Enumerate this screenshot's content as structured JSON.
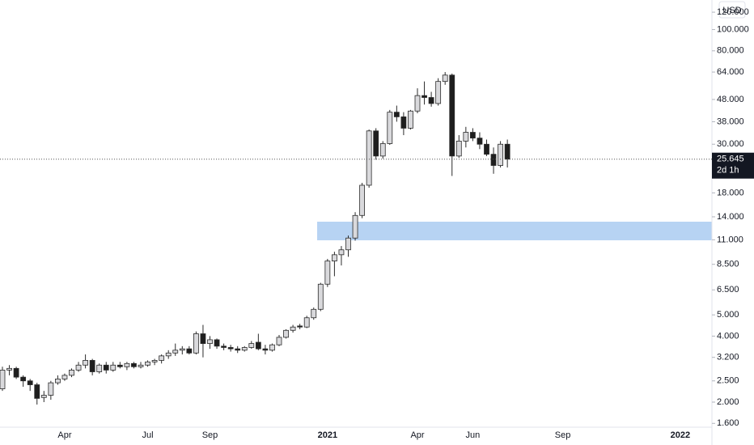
{
  "chart_data": {
    "type": "candlestick",
    "currency": "USD",
    "countdown": "2d 1h",
    "log_scale": true,
    "ylim": [
      1537,
      136400
    ],
    "yticks": [
      {
        "value": 1600,
        "label": "1.600"
      },
      {
        "value": 2000,
        "label": "2.000"
      },
      {
        "value": 2500,
        "label": "2.500"
      },
      {
        "value": 3200,
        "label": "3.200"
      },
      {
        "value": 4000,
        "label": "4.000"
      },
      {
        "value": 5000,
        "label": "5.000"
      },
      {
        "value": 6500,
        "label": "6.500"
      },
      {
        "value": 8500,
        "label": "8.500"
      },
      {
        "value": 11000,
        "label": "11.000"
      },
      {
        "value": 14000,
        "label": "14.000"
      },
      {
        "value": 18000,
        "label": "18.000"
      },
      {
        "value": 30000,
        "label": "30.000"
      },
      {
        "value": 38000,
        "label": "38.000"
      },
      {
        "value": 48000,
        "label": "48.000"
      },
      {
        "value": 64000,
        "label": "64.000"
      },
      {
        "value": 80000,
        "label": "80.000"
      },
      {
        "value": 100000,
        "label": "100.000"
      },
      {
        "value": 120000,
        "label": "120.000"
      }
    ],
    "last_price": {
      "value": 25645,
      "label": "25.645"
    },
    "zone": {
      "from": 10940,
      "to": 13300,
      "color": "#b3d1f2"
    },
    "up_color": "#d9d9dc",
    "down_color": "#1e1e1e",
    "border_color": "#2b2b2b",
    "categories": [
      null,
      null,
      null,
      null,
      null,
      null,
      null,
      null,
      null,
      "Apr",
      null,
      null,
      null,
      null,
      null,
      null,
      null,
      null,
      null,
      null,
      null,
      "Jul",
      null,
      null,
      null,
      null,
      null,
      null,
      null,
      null,
      "Sep",
      null,
      null,
      null,
      null,
      null,
      null,
      null,
      null,
      null,
      null,
      null,
      null,
      null,
      null,
      null,
      null,
      "2021",
      null,
      null,
      null,
      null,
      null,
      null,
      null,
      null,
      null,
      null,
      null,
      null,
      "Apr",
      null,
      null,
      null,
      null,
      null,
      null,
      null,
      "Jun",
      null,
      null,
      null,
      null,
      null,
      null,
      null,
      null,
      null,
      null,
      null,
      null,
      "Sep",
      null,
      null,
      null,
      null,
      null,
      null,
      null,
      null,
      null,
      null,
      null,
      null,
      null,
      null,
      null,
      null,
      "2022",
      null,
      null,
      null,
      null
    ],
    "open": [
      2300,
      2800,
      2850,
      2600,
      2500,
      2400,
      2100,
      2150,
      2450,
      2550,
      2650,
      2800,
      2950,
      3100,
      2750,
      2950,
      2800,
      2950,
      2900,
      3000,
      2900,
      2950,
      3050,
      3100,
      3250,
      3350,
      3450,
      3500,
      3350,
      4100,
      3700,
      3850,
      3600,
      3550,
      3500,
      3450,
      3550,
      3750,
      3500,
      3450,
      3650,
      3950,
      4250,
      4450,
      4400,
      4850,
      5300,
      6900,
      8800,
      9400,
      9900,
      11200,
      14200,
      19500,
      34500,
      26500,
      30200,
      42000,
      40000,
      35500,
      42500,
      50000,
      49000,
      46000,
      58000,
      62000,
      26500,
      31000,
      34000,
      32000,
      30000,
      27000,
      24000,
      30000,
      null,
      null,
      null,
      null,
      null,
      null,
      null,
      null,
      null,
      null,
      null,
      null,
      null,
      null,
      null,
      null,
      null,
      null,
      null,
      null,
      null,
      null,
      null,
      null,
      null,
      null,
      null,
      null,
      null
    ],
    "high": [
      2900,
      2950,
      2900,
      2650,
      2550,
      2450,
      2250,
      2500,
      2650,
      2700,
      2850,
      3050,
      3300,
      3150,
      3000,
      3050,
      3050,
      3050,
      3050,
      3050,
      3050,
      3100,
      3150,
      3300,
      3450,
      3700,
      3600,
      3600,
      4200,
      4500,
      4000,
      3900,
      3700,
      3650,
      3600,
      3600,
      3800,
      4100,
      3650,
      3700,
      4050,
      4300,
      4500,
      4550,
      4950,
      5400,
      7000,
      9000,
      9700,
      10300,
      11500,
      14700,
      20000,
      35000,
      35500,
      31000,
      43000,
      45000,
      42000,
      43000,
      54000,
      58000,
      52000,
      60000,
      64000,
      63000,
      33000,
      36000,
      35500,
      34000,
      31500,
      29000,
      31000,
      31500,
      null,
      null,
      null,
      null,
      null,
      null,
      null,
      null,
      null,
      null,
      null,
      null,
      null,
      null,
      null,
      null,
      null,
      null,
      null,
      null,
      null,
      null,
      null,
      null,
      null,
      null,
      null,
      null,
      null
    ],
    "low": [
      2250,
      2650,
      2550,
      2350,
      2250,
      1950,
      2000,
      2050,
      2400,
      2500,
      2600,
      2750,
      2850,
      2650,
      2700,
      2700,
      2750,
      2850,
      2800,
      2850,
      2850,
      2900,
      2950,
      3000,
      3150,
      3250,
      3300,
      3300,
      3300,
      3200,
      3500,
      3500,
      3450,
      3400,
      3350,
      3400,
      3500,
      3450,
      3300,
      3400,
      3600,
      3900,
      4150,
      4300,
      4350,
      4750,
      5200,
      6700,
      7500,
      8400,
      9200,
      10900,
      13800,
      19000,
      25500,
      25800,
      29800,
      38000,
      33000,
      35000,
      41500,
      45500,
      44500,
      45000,
      56000,
      21500,
      26000,
      29000,
      31000,
      28500,
      26500,
      22000,
      23500,
      23500,
      null,
      null,
      null,
      null,
      null,
      null,
      null,
      null,
      null,
      null,
      null,
      null,
      null,
      null,
      null,
      null,
      null,
      null,
      null,
      null,
      null,
      null,
      null,
      null,
      null,
      null,
      null,
      null,
      null
    ],
    "close": [
      2800,
      2850,
      2600,
      2500,
      2400,
      2080,
      2150,
      2450,
      2550,
      2650,
      2800,
      2950,
      3100,
      2750,
      2950,
      2800,
      2950,
      2900,
      3000,
      2900,
      2950,
      3050,
      3100,
      3250,
      3350,
      3450,
      3500,
      3350,
      4100,
      3700,
      3850,
      3600,
      3550,
      3500,
      3450,
      3550,
      3700,
      3500,
      3450,
      3650,
      3950,
      4250,
      4400,
      4400,
      4850,
      5300,
      6900,
      8800,
      9400,
      9900,
      11200,
      14200,
      19500,
      34500,
      26500,
      30200,
      42000,
      40000,
      35500,
      42500,
      50000,
      49000,
      46000,
      58000,
      62000,
      26500,
      31000,
      34000,
      32000,
      30000,
      27000,
      24000,
      30000,
      25645,
      null,
      null,
      null,
      null,
      null,
      null,
      null,
      null,
      null,
      null,
      null,
      null,
      null,
      null,
      null,
      null,
      null,
      null,
      null,
      null,
      null,
      null,
      null,
      null,
      null,
      null,
      null,
      null,
      null
    ]
  }
}
